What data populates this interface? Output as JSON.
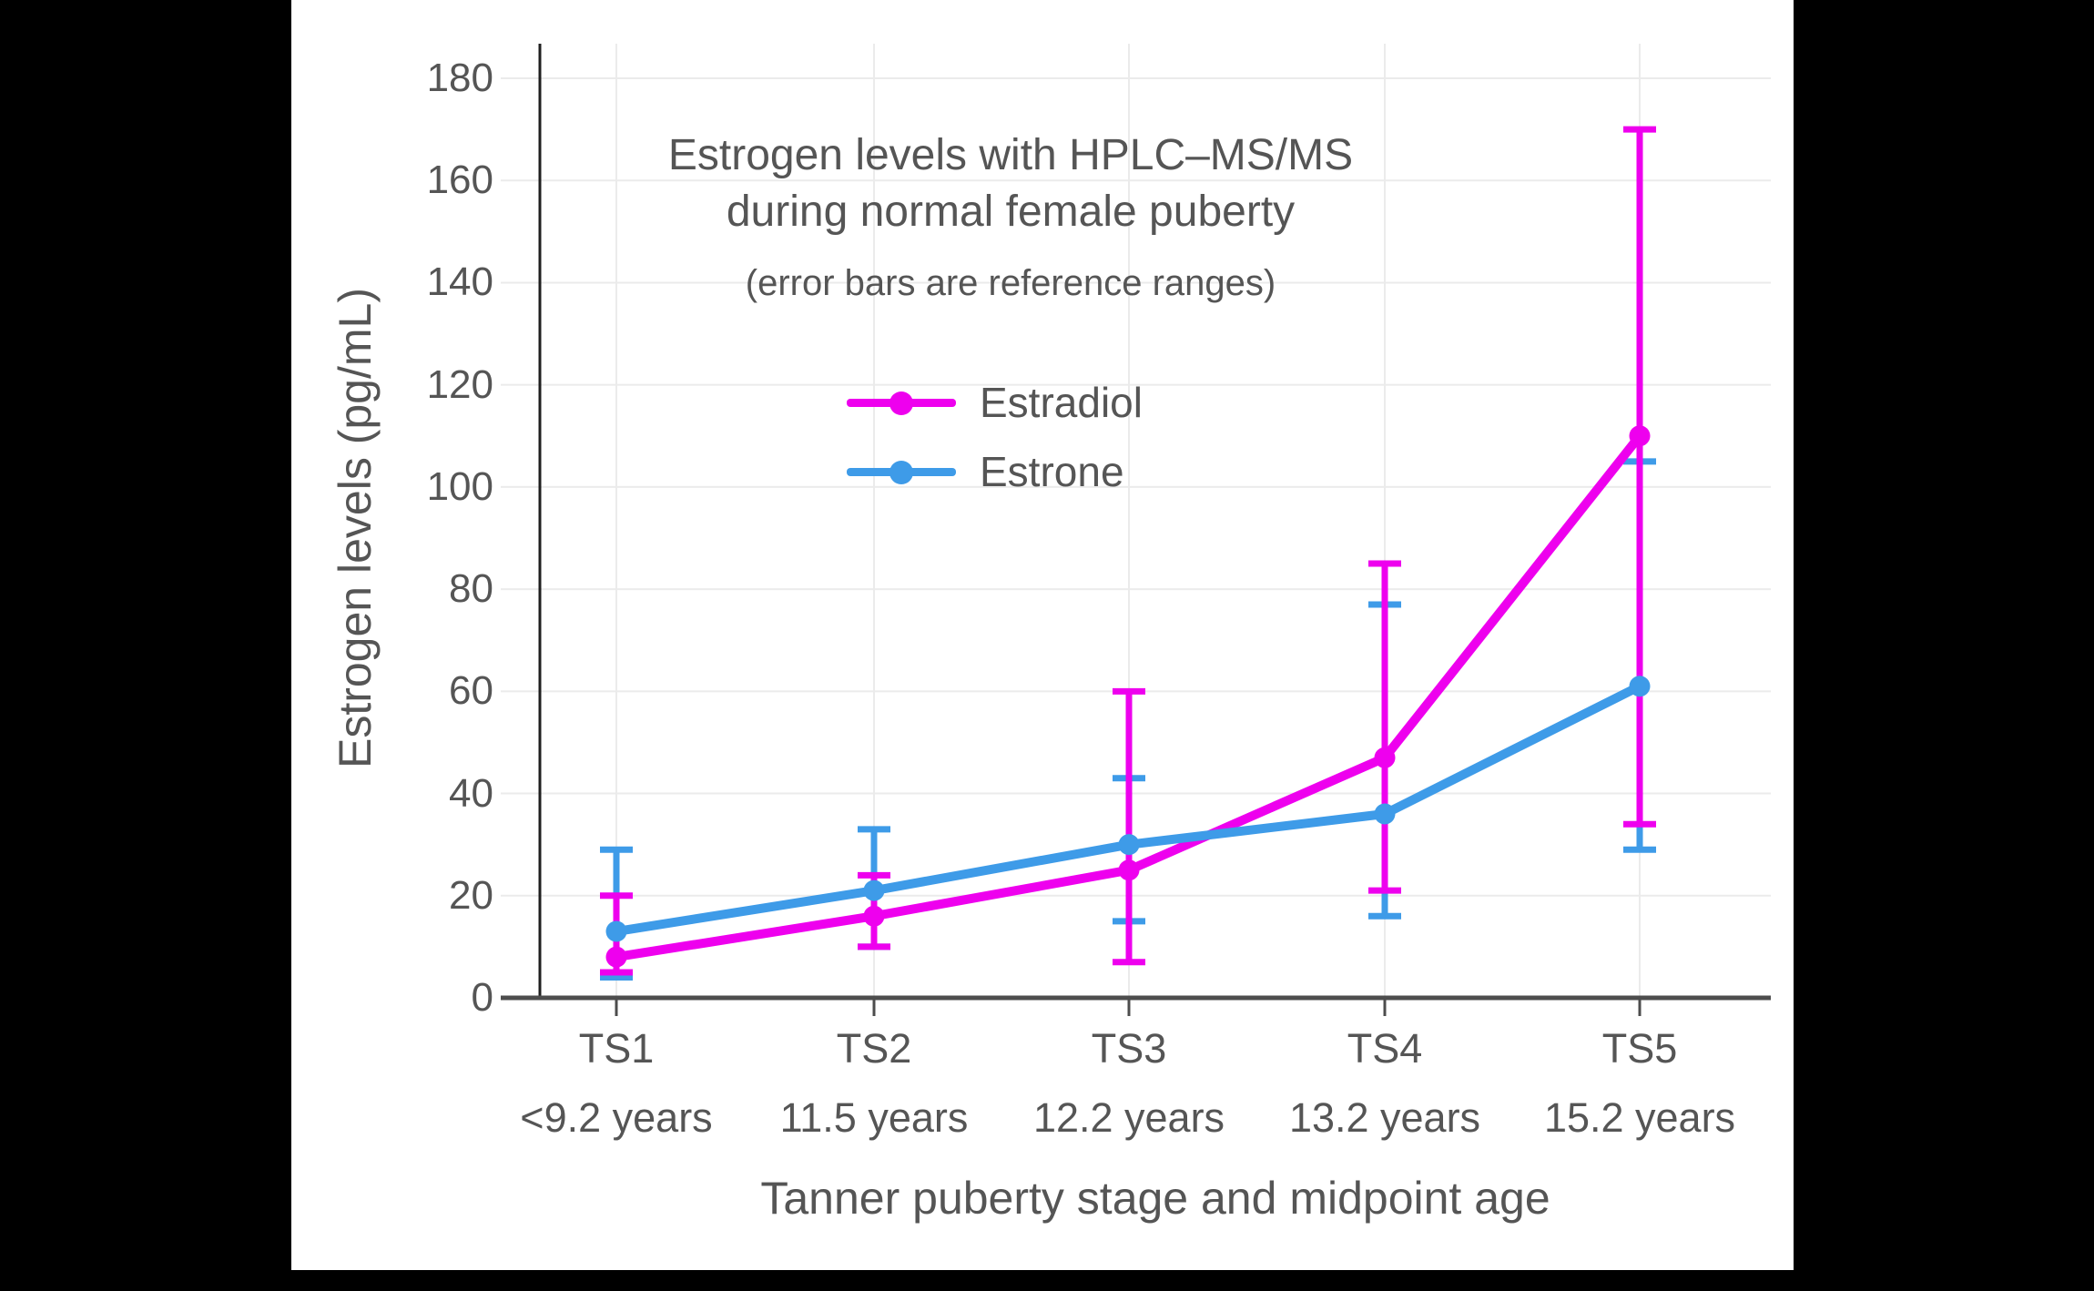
{
  "window": {
    "background": "#000000",
    "panel_background": "#ffffff"
  },
  "header": {
    "title_line1": "Estrogen levels with HPLC–MS/MS",
    "title_line2": "during normal female puberty",
    "subtitle": "(error bars are reference ranges)"
  },
  "colors": {
    "grid": "#ebebeb",
    "axis_y": "#1f1f1f",
    "axis_x": "#4d4d4d",
    "text": "#555555"
  },
  "chart_data": {
    "type": "line",
    "title": "Estrogen levels with HPLC–MS/MS during normal female puberty",
    "subtitle": "(error bars are reference ranges)",
    "xlabel": "Tanner puberty stage and midpoint age",
    "ylabel": "Estrogen levels (pg/mL)",
    "ylim": [
      0,
      180
    ],
    "ytick_step": 20,
    "grid": true,
    "legend_position": "inside upper-left",
    "categories": [
      {
        "stage": "TS1",
        "age": "<9.2 years"
      },
      {
        "stage": "TS2",
        "age": "11.5 years"
      },
      {
        "stage": "TS3",
        "age": "12.2 years"
      },
      {
        "stage": "TS4",
        "age": "13.2 years"
      },
      {
        "stage": "TS5",
        "age": "15.2 years"
      }
    ],
    "series": [
      {
        "name": "Estradiol",
        "color": "#ee00ee",
        "values": [
          8,
          16,
          25,
          47,
          110
        ],
        "error_low": [
          5,
          10,
          7,
          21,
          34
        ],
        "error_high": [
          20,
          24,
          60,
          85,
          170
        ]
      },
      {
        "name": "Estrone",
        "color": "#3e9be8",
        "values": [
          13,
          21,
          30,
          36,
          61
        ],
        "error_low": [
          4,
          10,
          15,
          16,
          29
        ],
        "error_high": [
          29,
          33,
          43,
          77,
          105
        ]
      }
    ]
  }
}
